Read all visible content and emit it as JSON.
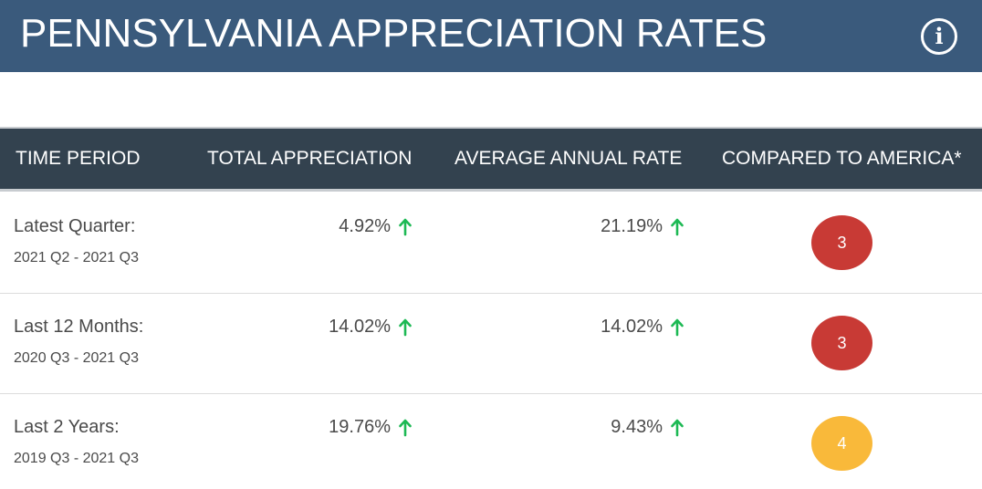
{
  "header": {
    "title": "PENNSYLVANIA APPRECIATION RATES",
    "info_symbol": "i",
    "info_icon": "info-circle-icon"
  },
  "table": {
    "columns": [
      "TIME PERIOD",
      "TOTAL APPRECIATION",
      "AVERAGE ANNUAL RATE",
      "COMPARED TO AMERICA*"
    ],
    "rows": [
      {
        "period": "Latest Quarter:",
        "range": "2021 Q2 - 2021 Q3",
        "total": "4.92%",
        "total_trend": "up",
        "average": "21.19%",
        "average_trend": "up",
        "rank": "3",
        "rank_color": "#c83a35"
      },
      {
        "period": "Last 12 Months:",
        "range": "2020 Q3 - 2021 Q3",
        "total": "14.02%",
        "total_trend": "up",
        "average": "14.02%",
        "average_trend": "up",
        "rank": "3",
        "rank_color": "#c83a35"
      },
      {
        "period": "Last 2 Years:",
        "range": "2019 Q3 - 2021 Q3",
        "total": "19.76%",
        "total_trend": "up",
        "average": "9.43%",
        "average_trend": "up",
        "rank": "4",
        "rank_color": "#f9b93a"
      }
    ]
  },
  "colors": {
    "title_bar": "#3a5a7c",
    "header_bar": "#33424f",
    "up_arrow": "#1db954"
  }
}
